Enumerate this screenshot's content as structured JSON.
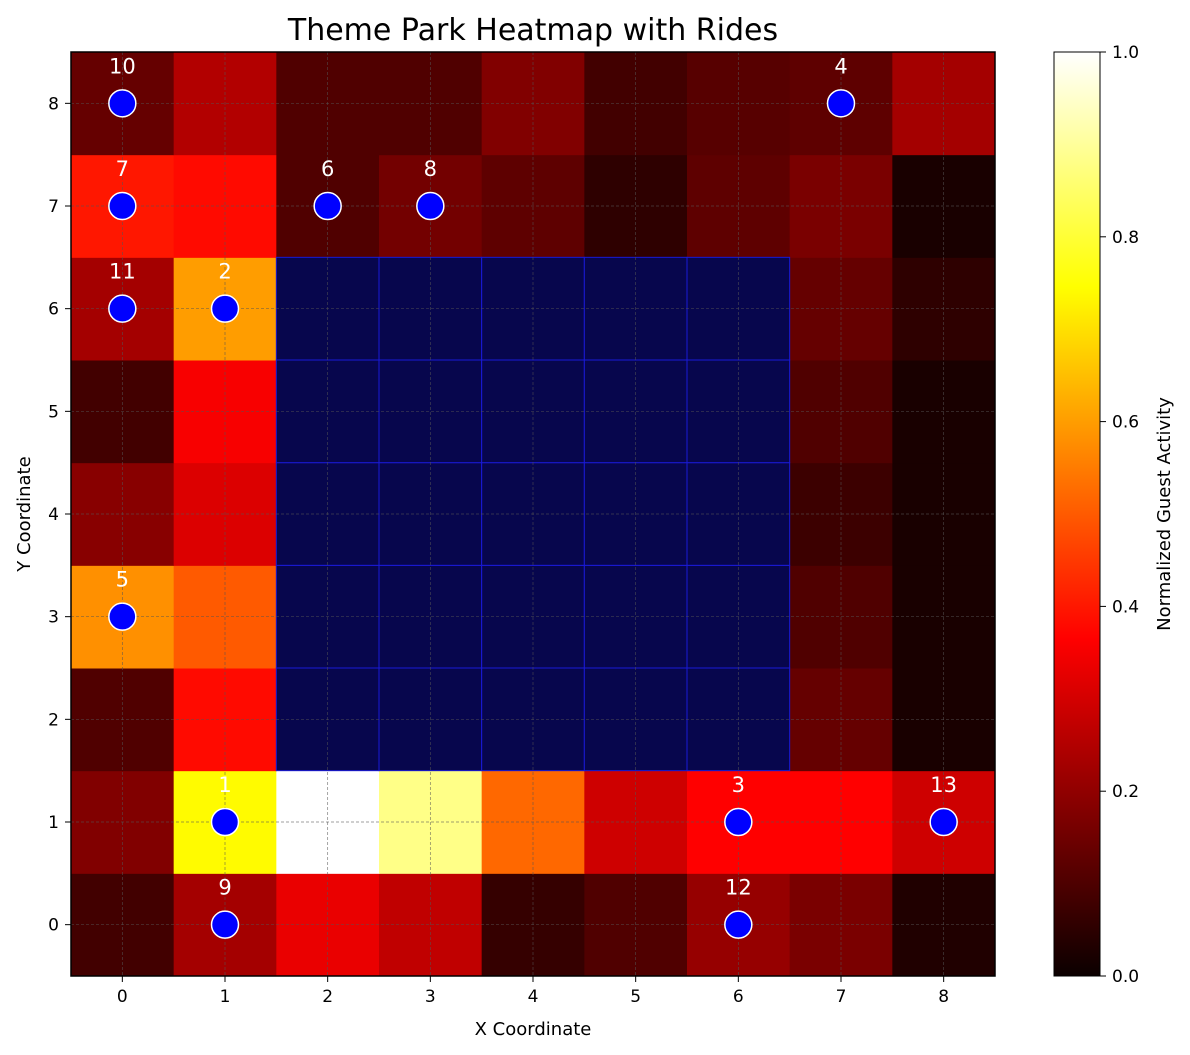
{
  "chart_data": {
    "type": "heatmap",
    "title": "Theme Park Heatmap with Rides",
    "xlabel": "X Coordinate",
    "ylabel": "Y Coordinate",
    "x_categories": [
      "0",
      "1",
      "2",
      "3",
      "4",
      "5",
      "6",
      "7",
      "8"
    ],
    "y_categories": [
      "0",
      "1",
      "2",
      "3",
      "4",
      "5",
      "6",
      "7",
      "8"
    ],
    "colormap": "hot",
    "colorbar": {
      "label": "Normalized Guest Activity",
      "range": [
        0.0,
        1.0
      ],
      "ticks": [
        "0.0",
        "0.2",
        "0.4",
        "0.6",
        "0.8",
        "1.0"
      ]
    },
    "values": [
      [
        0.08,
        0.22,
        0.32,
        0.26,
        0.06,
        0.1,
        0.2,
        0.16,
        0.03
      ],
      [
        0.17,
        0.74,
        1.0,
        0.88,
        0.52,
        0.28,
        0.35,
        0.35,
        0.28
      ],
      [
        0.1,
        0.38,
        null,
        null,
        null,
        null,
        null,
        0.13,
        0.02
      ],
      [
        0.58,
        0.5,
        null,
        null,
        null,
        null,
        null,
        0.1,
        0.02
      ],
      [
        0.18,
        0.3,
        null,
        null,
        null,
        null,
        null,
        0.07,
        0.02
      ],
      [
        0.08,
        0.34,
        null,
        null,
        null,
        null,
        null,
        0.1,
        0.02
      ],
      [
        0.22,
        0.6,
        null,
        null,
        null,
        null,
        null,
        0.13,
        0.05
      ],
      [
        0.4,
        0.38,
        0.1,
        0.15,
        0.12,
        0.05,
        0.12,
        0.16,
        0.02
      ],
      [
        0.13,
        0.24,
        0.1,
        0.1,
        0.17,
        0.08,
        0.11,
        0.12,
        0.22
      ]
    ],
    "blocked_region": {
      "x": [
        2,
        6
      ],
      "y": [
        2,
        6
      ],
      "color": "#07064d",
      "edge_color": "#1a1ad6"
    },
    "rides": [
      {
        "id": "1",
        "x": 1,
        "y": 1
      },
      {
        "id": "2",
        "x": 1,
        "y": 6
      },
      {
        "id": "3",
        "x": 6,
        "y": 1
      },
      {
        "id": "4",
        "x": 7,
        "y": 8
      },
      {
        "id": "5",
        "x": 0,
        "y": 3
      },
      {
        "id": "6",
        "x": 2,
        "y": 7
      },
      {
        "id": "7",
        "x": 0,
        "y": 7
      },
      {
        "id": "8",
        "x": 3,
        "y": 7
      },
      {
        "id": "9",
        "x": 1,
        "y": 0
      },
      {
        "id": "10",
        "x": 0,
        "y": 8
      },
      {
        "id": "11",
        "x": 0,
        "y": 6
      },
      {
        "id": "12",
        "x": 6,
        "y": 0
      },
      {
        "id": "13",
        "x": 8,
        "y": 1
      }
    ],
    "ride_marker_color": "#0000ff",
    "grid": true
  }
}
